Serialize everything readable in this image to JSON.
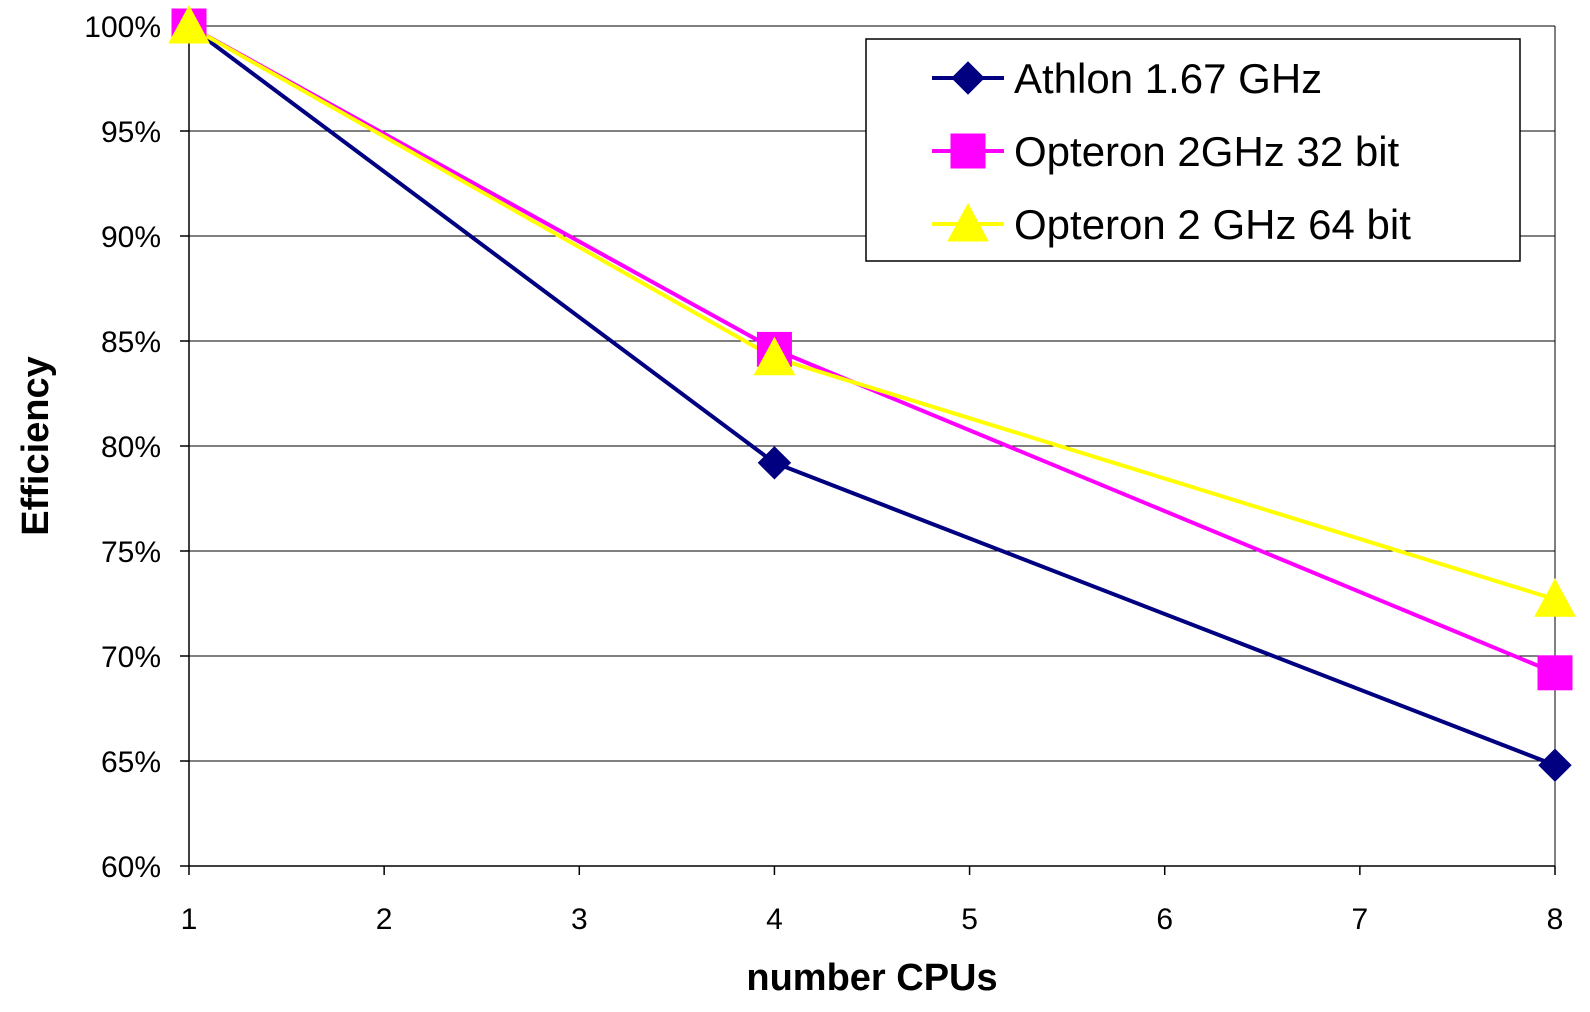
{
  "chart_data": {
    "type": "line",
    "title": "",
    "xlabel": "number CPUs",
    "ylabel": "Efficiency",
    "x_ticks": [
      "1",
      "2",
      "3",
      "4",
      "5",
      "6",
      "7",
      "8"
    ],
    "y_ticks": [
      "60%",
      "65%",
      "70%",
      "75%",
      "80%",
      "85%",
      "90%",
      "95%",
      "100%"
    ],
    "xlim": [
      1,
      8
    ],
    "ylim": [
      0.6,
      1.0
    ],
    "grid": "horizontal",
    "legend_position": "top-right",
    "series": [
      {
        "name": "Athlon 1.67 GHz",
        "color": "#000080",
        "marker": "diamond",
        "x": [
          1,
          4,
          8
        ],
        "y": [
          1.0,
          0.792,
          0.648
        ]
      },
      {
        "name": "Opteron 2GHz 32 bit",
        "color": "#FF00FF",
        "marker": "square",
        "x": [
          1,
          4,
          8
        ],
        "y": [
          1.0,
          0.846,
          0.692
        ]
      },
      {
        "name": "Opteron 2 GHz 64 bit",
        "color": "#FFFF00",
        "marker": "triangle",
        "x": [
          1,
          4,
          8
        ],
        "y": [
          1.0,
          0.842,
          0.727
        ]
      }
    ]
  }
}
